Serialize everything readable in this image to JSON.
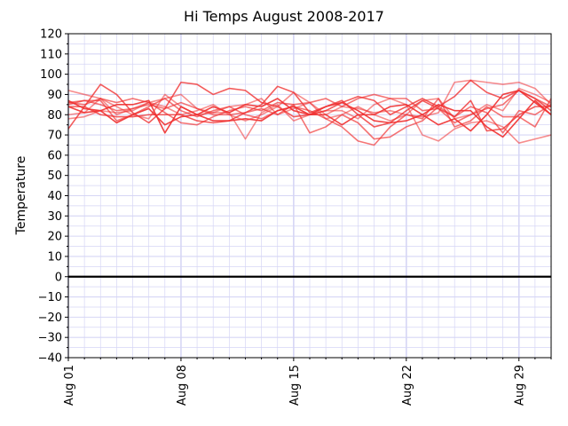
{
  "chart_data": {
    "type": "line",
    "title": "Hi Temps August 2008-2017",
    "xlabel": "",
    "ylabel": "Temperature",
    "x_start": "Aug 01",
    "x_end": "Aug 31",
    "x_tick_labels": [
      "Aug 01",
      "Aug 08",
      "Aug 15",
      "Aug 22",
      "Aug 29"
    ],
    "x_tick_days": [
      1,
      8,
      15,
      22,
      29
    ],
    "y_ticks": [
      -40,
      -30,
      -20,
      -10,
      0,
      10,
      20,
      30,
      40,
      50,
      60,
      70,
      80,
      90,
      100,
      110,
      120
    ],
    "ylim": [
      -40,
      120
    ],
    "reference_line": {
      "y": 0,
      "color": "#000000"
    },
    "grid": true,
    "colors": {
      "series": "#f03030",
      "grid": "#d6d6f5",
      "axis": "#000000",
      "background": "#ffffff"
    },
    "days": [
      1,
      2,
      3,
      4,
      5,
      6,
      7,
      8,
      9,
      10,
      11,
      12,
      13,
      14,
      15,
      16,
      17,
      18,
      19,
      20,
      21,
      22,
      23,
      24,
      25,
      26,
      27,
      28,
      29,
      30,
      31
    ],
    "series": [
      {
        "values": [
          92,
          90,
          88,
          80,
          83,
          86,
          84,
          80,
          82,
          85,
          80,
          77,
          80,
          84,
          91,
          86,
          80,
          84,
          83,
          81,
          82,
          80,
          87,
          88,
          78,
          80,
          85,
          82,
          93,
          90,
          86
        ]
      },
      {
        "values": [
          85,
          87,
          87,
          77,
          80,
          84,
          88,
          82,
          79,
          82,
          84,
          80,
          78,
          82,
          84,
          82,
          78,
          74,
          67,
          65,
          74,
          80,
          78,
          88,
          74,
          77,
          84,
          79,
          79,
          74,
          88
        ]
      },
      {
        "values": [
          73,
          84,
          95,
          90,
          81,
          76,
          83,
          96,
          95,
          90,
          93,
          92,
          86,
          84,
          79,
          80,
          82,
          86,
          89,
          87,
          80,
          84,
          88,
          84,
          89,
          97,
          91,
          88,
          92,
          88,
          82
        ]
      },
      {
        "values": [
          87,
          83,
          82,
          76,
          80,
          83,
          75,
          79,
          80,
          84,
          81,
          85,
          84,
          88,
          82,
          80,
          84,
          86,
          82,
          77,
          76,
          77,
          80,
          75,
          78,
          72,
          80,
          90,
          92,
          86,
          80
        ]
      },
      {
        "values": [
          80,
          81,
          88,
          84,
          80,
          78,
          90,
          84,
          80,
          81,
          81,
          68,
          81,
          85,
          77,
          80,
          82,
          82,
          78,
          85,
          88,
          85,
          70,
          67,
          73,
          76,
          77,
          74,
          66,
          68,
          70
        ]
      },
      {
        "values": [
          86,
          85,
          88,
          86,
          88,
          86,
          81,
          76,
          75,
          79,
          82,
          84,
          82,
          86,
          85,
          71,
          74,
          80,
          76,
          68,
          69,
          74,
          77,
          84,
          79,
          84,
          81,
          71,
          82,
          80,
          85
        ]
      },
      {
        "values": [
          84,
          84,
          80,
          79,
          79,
          80,
          80,
          80,
          77,
          76,
          77,
          81,
          85,
          94,
          91,
          81,
          84,
          87,
          80,
          74,
          76,
          82,
          87,
          83,
          79,
          87,
          72,
          73,
          80,
          84,
          84
        ]
      },
      {
        "values": [
          84,
          81,
          82,
          85,
          85,
          87,
          71,
          84,
          80,
          77,
          77,
          78,
          77,
          82,
          84,
          80,
          80,
          75,
          80,
          80,
          84,
          85,
          80,
          85,
          82,
          82,
          74,
          69,
          78,
          87,
          80
        ]
      },
      {
        "values": [
          78,
          79,
          82,
          81,
          82,
          86,
          88,
          90,
          83,
          81,
          84,
          85,
          88,
          80,
          83,
          86,
          78,
          80,
          84,
          80,
          77,
          80,
          79,
          81,
          96,
          97,
          96,
          95,
          96,
          93,
          85
        ]
      },
      {
        "values": [
          86,
          87,
          85,
          82,
          83,
          85,
          83,
          86,
          83,
          80,
          80,
          81,
          83,
          80,
          85,
          86,
          88,
          84,
          88,
          90,
          88,
          88,
          82,
          83,
          76,
          80,
          83,
          85,
          92,
          88,
          84
        ]
      }
    ]
  }
}
